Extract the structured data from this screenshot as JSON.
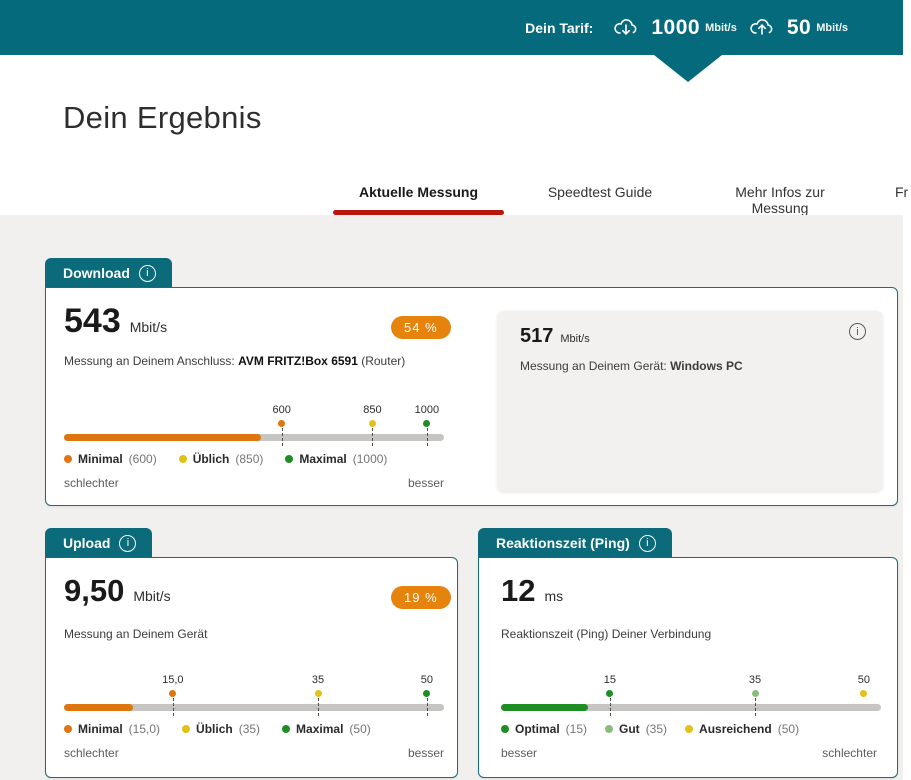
{
  "header": {
    "tariff_label": "Dein Tarif:",
    "download": {
      "value": "1000",
      "unit": "Mbit/s"
    },
    "upload": {
      "value": "50",
      "unit": "Mbit/s"
    }
  },
  "page": {
    "title": "Dein Ergebnis"
  },
  "tabs": [
    {
      "label": "Aktuelle Messung"
    },
    {
      "label": "Speedtest Guide"
    },
    {
      "label": "Mehr Infos zur Messung"
    },
    {
      "label": "Fr"
    }
  ],
  "icons": {
    "info_glyph": "i"
  },
  "colors": {
    "teal": "#056a7b",
    "tab_underline_red": "#b8150b",
    "orange": "#de760f",
    "yellow": "#e3c215",
    "green": "#1e8e24",
    "light_green": "#8abc7d",
    "badge_orange": "#e5830d",
    "track_gray": "#c6c5c3"
  },
  "download": {
    "tab_label": "Download",
    "value": "543",
    "unit": "Mbit/s",
    "badge": "54 %",
    "description_prefix": "Messung an Deinem Anschluss: ",
    "description_bold": "AVM FRITZ!Box 6591",
    "description_suffix": " (Router)",
    "scale": {
      "max": 1000,
      "value": 543,
      "fill_color": "#de760f",
      "markers": [
        {
          "value": 600,
          "label": "600",
          "color": "#de760f",
          "tick": true
        },
        {
          "value": 850,
          "label": "850",
          "color": "#e3c215",
          "tick": true
        },
        {
          "value": 1000,
          "label": "1000",
          "color": "#1e8e24",
          "tick": true
        }
      ]
    },
    "legend": [
      {
        "name": "Minimal",
        "value": "(600)",
        "color": "#de760f"
      },
      {
        "name": "Üblich",
        "value": "(850)",
        "color": "#e3c215"
      },
      {
        "name": "Maximal",
        "value": "(1000)",
        "color": "#1e8e24"
      }
    ],
    "left_label": "schlechter",
    "right_label": "besser",
    "device_panel": {
      "value": "517",
      "unit": "Mbit/s",
      "description_prefix": "Messung an Deinem Gerät: ",
      "description_bold": "Windows PC"
    }
  },
  "upload": {
    "tab_label": "Upload",
    "value": "9,50",
    "unit": "Mbit/s",
    "badge": "19 %",
    "description": "Messung an Deinem Gerät",
    "scale": {
      "max": 50,
      "value": 9.5,
      "fill_color": "#de760f",
      "markers": [
        {
          "value": 15,
          "label": "15,0",
          "color": "#de760f",
          "tick": true
        },
        {
          "value": 35,
          "label": "35",
          "color": "#e3c215",
          "tick": true
        },
        {
          "value": 50,
          "label": "50",
          "color": "#1e8e24",
          "tick": true
        }
      ]
    },
    "legend": [
      {
        "name": "Minimal",
        "value": "(15,0)",
        "color": "#de760f"
      },
      {
        "name": "Üblich",
        "value": "(35)",
        "color": "#e3c215"
      },
      {
        "name": "Maximal",
        "value": "(50)",
        "color": "#1e8e24"
      }
    ],
    "left_label": "schlechter",
    "right_label": "besser"
  },
  "ping": {
    "tab_label": "Reaktionszeit (Ping)",
    "value": "12",
    "unit": "ms",
    "description": "Reaktionszeit (Ping) Deiner Verbindung",
    "scale": {
      "max": 50,
      "value": 12,
      "fill_color": "#1e8e24",
      "markers": [
        {
          "value": 15,
          "label": "15",
          "color": "#1e8e24",
          "tick": true
        },
        {
          "value": 35,
          "label": "35",
          "color": "#8abc7d",
          "tick": true
        },
        {
          "value": 50,
          "label": "50",
          "color": "#e3c215",
          "tick": false
        }
      ]
    },
    "legend": [
      {
        "name": "Optimal",
        "value": "(15)",
        "color": "#1e8e24"
      },
      {
        "name": "Gut",
        "value": "(35)",
        "color": "#8abc7d"
      },
      {
        "name": "Ausreichend",
        "value": "(50)",
        "color": "#e3c215"
      }
    ],
    "left_label": "besser",
    "right_label": "schlechter"
  }
}
